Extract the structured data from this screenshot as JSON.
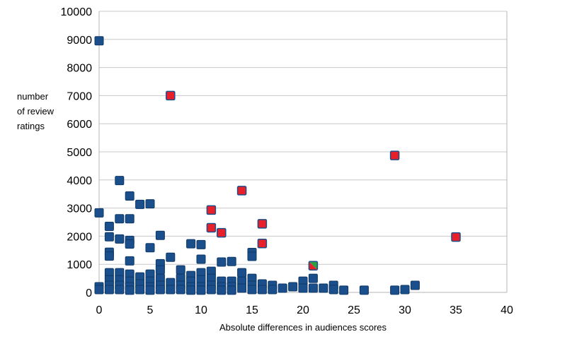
{
  "chart_data": {
    "type": "scatter",
    "xlabel": "Absolute differences in audiences scores",
    "ylabel_lines": [
      "number",
      "of review",
      "ratings"
    ],
    "xlim": [
      0,
      40
    ],
    "ylim": [
      0,
      10000
    ],
    "xticks": [
      0,
      5,
      10,
      15,
      20,
      25,
      30,
      35,
      40
    ],
    "yticks": [
      0,
      1000,
      2000,
      3000,
      4000,
      5000,
      6000,
      7000,
      8000,
      9000,
      10000
    ],
    "grid": "horizontal",
    "colors": {
      "blue": "#1a4f8b",
      "blue_edge": "#0f3866",
      "red": "#e8202a",
      "red_edge": "#1a4f8b",
      "green": "#2ea043",
      "grid": "#c8c8c8",
      "axis": "#b4b4b4"
    },
    "series": [
      {
        "color_key": "blue",
        "points": [
          [
            0,
            8950
          ],
          [
            0,
            2830
          ],
          [
            0,
            200
          ],
          [
            0,
            100
          ],
          [
            1,
            2350
          ],
          [
            1,
            1980
          ],
          [
            1,
            1430
          ],
          [
            1,
            1290
          ],
          [
            1,
            700
          ],
          [
            1,
            450
          ],
          [
            1,
            250
          ],
          [
            1,
            100
          ],
          [
            2,
            3980
          ],
          [
            2,
            2620
          ],
          [
            2,
            1900
          ],
          [
            2,
            700
          ],
          [
            2,
            450
          ],
          [
            2,
            250
          ],
          [
            2,
            100
          ],
          [
            3,
            3430
          ],
          [
            3,
            2620
          ],
          [
            3,
            1850
          ],
          [
            3,
            1720
          ],
          [
            3,
            1120
          ],
          [
            3,
            650
          ],
          [
            3,
            400
          ],
          [
            3,
            200
          ],
          [
            3,
            80
          ],
          [
            4,
            3130
          ],
          [
            4,
            550
          ],
          [
            4,
            300
          ],
          [
            4,
            100
          ],
          [
            5,
            3150
          ],
          [
            5,
            1590
          ],
          [
            5,
            650
          ],
          [
            5,
            400
          ],
          [
            5,
            200
          ],
          [
            5,
            80
          ],
          [
            6,
            2030
          ],
          [
            6,
            1020
          ],
          [
            6,
            800
          ],
          [
            6,
            500
          ],
          [
            6,
            250
          ],
          [
            6,
            100
          ],
          [
            7,
            1250
          ],
          [
            7,
            350
          ],
          [
            7,
            100
          ],
          [
            8,
            800
          ],
          [
            8,
            500
          ],
          [
            8,
            250
          ],
          [
            8,
            100
          ],
          [
            9,
            1730
          ],
          [
            9,
            600
          ],
          [
            9,
            400
          ],
          [
            9,
            200
          ],
          [
            9,
            80
          ],
          [
            10,
            1700
          ],
          [
            10,
            1180
          ],
          [
            10,
            700
          ],
          [
            10,
            450
          ],
          [
            10,
            200
          ],
          [
            10,
            80
          ],
          [
            11,
            750
          ],
          [
            11,
            500
          ],
          [
            11,
            250
          ],
          [
            11,
            100
          ],
          [
            12,
            1080
          ],
          [
            12,
            400
          ],
          [
            12,
            200
          ],
          [
            12,
            80
          ],
          [
            13,
            1100
          ],
          [
            13,
            400
          ],
          [
            13,
            200
          ],
          [
            13,
            80
          ],
          [
            14,
            700
          ],
          [
            14,
            400
          ],
          [
            14,
            150
          ],
          [
            15,
            1420
          ],
          [
            15,
            1280
          ],
          [
            15,
            500
          ],
          [
            15,
            250
          ],
          [
            15,
            100
          ],
          [
            16,
            300
          ],
          [
            16,
            100
          ],
          [
            17,
            250
          ],
          [
            17,
            100
          ],
          [
            18,
            150
          ],
          [
            19,
            200
          ],
          [
            20,
            400
          ],
          [
            20,
            150
          ],
          [
            21,
            500
          ],
          [
            21,
            150
          ],
          [
            22,
            150
          ],
          [
            23,
            250
          ],
          [
            23,
            100
          ],
          [
            24,
            80
          ],
          [
            26,
            80
          ],
          [
            29,
            80
          ],
          [
            30,
            100
          ],
          [
            31,
            250
          ]
        ]
      },
      {
        "color_key": "red",
        "points": [
          [
            7,
            7000
          ],
          [
            29,
            4870
          ],
          [
            14,
            3620
          ],
          [
            11,
            2930
          ],
          [
            16,
            2440
          ],
          [
            11,
            2300
          ],
          [
            12,
            2120
          ],
          [
            35,
            1970
          ],
          [
            16,
            1740
          ]
        ]
      },
      {
        "color_key": "split",
        "points": [
          [
            21,
            950
          ]
        ]
      }
    ]
  }
}
